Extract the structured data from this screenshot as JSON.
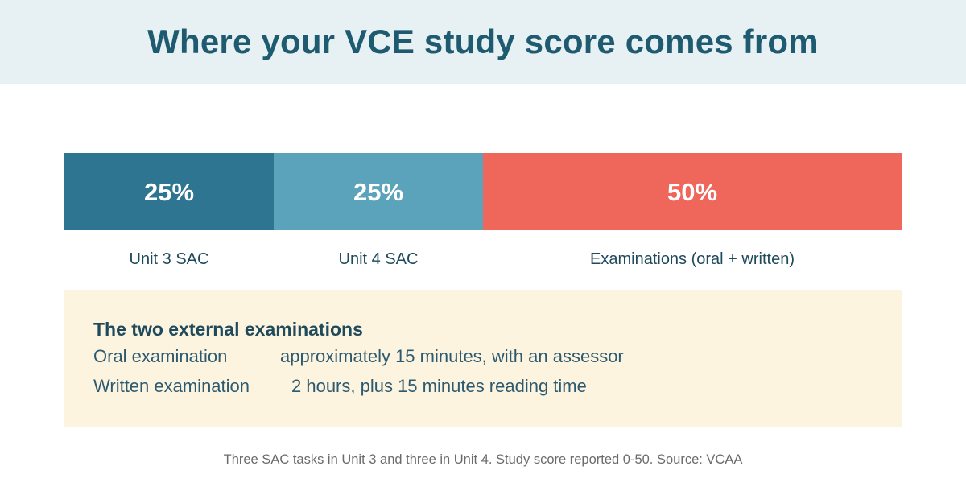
{
  "header": {
    "title": "Where your VCE study score comes from"
  },
  "chart_data": {
    "type": "bar",
    "orientation": "horizontal-stacked",
    "categories": [
      "Unit 3 SAC",
      "Unit 4 SAC",
      "Examinations (oral + written)"
    ],
    "values": [
      25,
      25,
      50
    ],
    "value_labels": [
      "25%",
      "25%",
      "50%"
    ],
    "colors": [
      "#2e7591",
      "#5ba2bb",
      "#ef665b"
    ],
    "value_label_color": "#ffffff",
    "category_label_color": "#1f4a5c",
    "total": 100
  },
  "info": {
    "title": "The two external examinations",
    "rows": [
      {
        "label": "Oral examination",
        "value": "approximately 15 minutes, with an assessor"
      },
      {
        "label": "Written examination",
        "value": "2 hours, plus 15 minutes reading time"
      }
    ]
  },
  "footnote": "Three SAC tasks in Unit 3 and three in Unit 4.  Study score reported 0-50.  Source: VCAA"
}
